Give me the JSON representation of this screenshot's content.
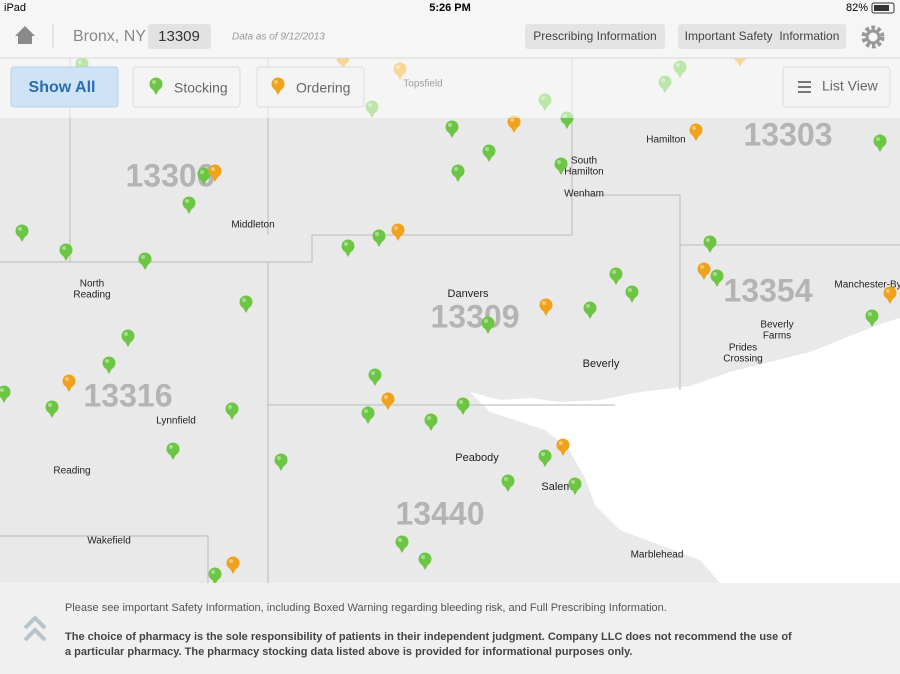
{
  "status_bar": {
    "device": "iPad",
    "time": "5:26 PM",
    "battery": "82%"
  },
  "header": {
    "location": "Bronx, NY",
    "zip": "13309",
    "data_date": "Data as of 9/12/2013",
    "buttons": [
      "Prescribing Information",
      "Important Safety  Information"
    ]
  },
  "filters": {
    "show_all": "Show All",
    "stocking": "Stocking",
    "ordering": "Ordering",
    "list_view": "List View"
  },
  "map": {
    "zip_codes": [
      "13303",
      "13306",
      "13309",
      "13354",
      "13316",
      "13440"
    ],
    "places": [
      [
        "Topsfield"
      ],
      [
        "Hamilton"
      ],
      [
        "South",
        "Hamilton"
      ],
      [
        "Wenham"
      ],
      [
        "Middleton"
      ],
      [
        "North",
        "Reading"
      ],
      [
        "Danvers"
      ],
      [
        "Manchester-By"
      ],
      [
        "Beverly",
        "Farms"
      ],
      [
        "Prides",
        "Crossing"
      ],
      [
        "Beverly"
      ],
      [
        "Lynnfield"
      ],
      [
        "Reading"
      ],
      [
        "Peabody"
      ],
      [
        "Salem"
      ],
      [
        "Wakefield"
      ],
      [
        "Marblehead"
      ]
    ]
  },
  "footer": {
    "notice": "Please see important Safety Information, including Boxed Warning regarding bleeding risk, and Full Prescribing Information.",
    "disclaimer": [
      "The choice of pharmacy is the sole responsibility of patients in their independent judgment. Company LLC does not recommend the use of",
      "a particular pharmacy. The pharmacy stocking data listed above is provided for informational purposes only."
    ]
  }
}
